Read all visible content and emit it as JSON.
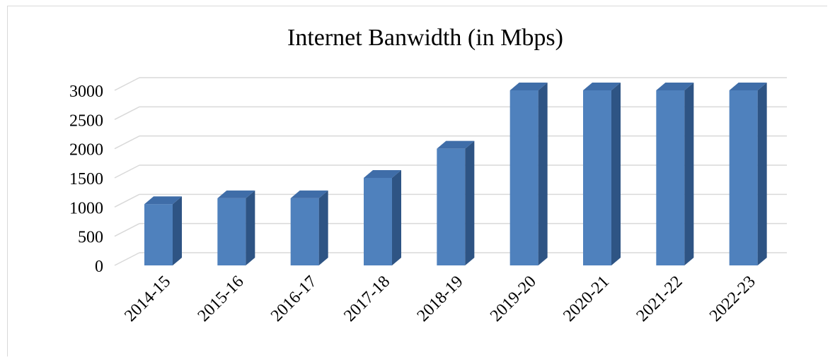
{
  "chart_data": {
    "type": "bar",
    "title": "Internet Banwidth (in Mbps)",
    "xlabel": "",
    "ylabel": "",
    "categories": [
      "2014-15",
      "2015-16",
      "2016-17",
      "2017-18",
      "2018-19",
      "2019-20",
      "2020-21",
      "2021-22",
      "2022-23"
    ],
    "values": [
      1050,
      1150,
      1150,
      1500,
      2000,
      3000,
      3000,
      3000,
      3000
    ],
    "yticks": [
      "0",
      "500",
      "1000",
      "1500",
      "2000",
      "2500",
      "3000"
    ],
    "ylim": [
      0,
      3000
    ],
    "grid": true,
    "legend": "none",
    "three_d": true,
    "colors": {
      "front": "#4f81bd",
      "top": "#3f6da8",
      "side": "#2e5484",
      "grid": "#d9d9d9"
    }
  }
}
